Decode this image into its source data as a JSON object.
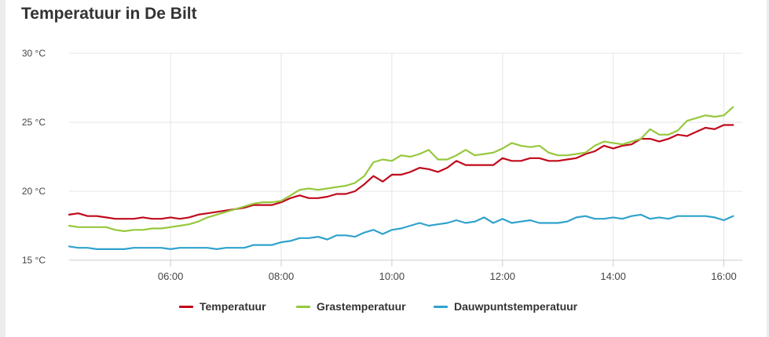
{
  "title": "Temperatuur in De Bilt",
  "chart_data": {
    "type": "line",
    "ylim": [
      15,
      30
    ],
    "y_ticks": [
      {
        "value": 15,
        "label": "15 °C"
      },
      {
        "value": 20,
        "label": "20 °C"
      },
      {
        "value": 25,
        "label": "25 °C"
      },
      {
        "value": 30,
        "label": "30 °C"
      }
    ],
    "x_range": [
      "04:10",
      "16:20"
    ],
    "x_ticks": [
      "06:00",
      "08:00",
      "10:00",
      "12:00",
      "14:00",
      "16:00"
    ],
    "grid": true,
    "legend": "bottom",
    "x": [
      "04:10",
      "04:20",
      "04:30",
      "04:40",
      "04:50",
      "05:00",
      "05:10",
      "05:20",
      "05:30",
      "05:40",
      "05:50",
      "06:00",
      "06:10",
      "06:20",
      "06:30",
      "06:40",
      "06:50",
      "07:00",
      "07:10",
      "07:20",
      "07:30",
      "07:40",
      "07:50",
      "08:00",
      "08:10",
      "08:20",
      "08:30",
      "08:40",
      "08:50",
      "09:00",
      "09:10",
      "09:20",
      "09:30",
      "09:40",
      "09:50",
      "10:00",
      "10:10",
      "10:20",
      "10:30",
      "10:40",
      "10:50",
      "11:00",
      "11:10",
      "11:20",
      "11:30",
      "11:40",
      "11:50",
      "12:00",
      "12:10",
      "12:20",
      "12:30",
      "12:40",
      "12:50",
      "13:00",
      "13:10",
      "13:20",
      "13:30",
      "13:40",
      "13:50",
      "14:00",
      "14:10",
      "14:20",
      "14:30",
      "14:40",
      "14:50",
      "15:00",
      "15:10",
      "15:20",
      "15:30",
      "15:40",
      "15:50",
      "16:00",
      "16:10"
    ],
    "series": [
      {
        "name": "Temperatuur",
        "color": "#c0091b",
        "values": [
          18.3,
          18.4,
          18.2,
          18.2,
          18.1,
          18.0,
          18.0,
          18.0,
          18.1,
          18.0,
          18.0,
          18.1,
          18.0,
          18.1,
          18.3,
          18.4,
          18.5,
          18.6,
          18.7,
          18.8,
          19.0,
          19.0,
          19.0,
          19.2,
          19.5,
          19.7,
          19.5,
          19.5,
          19.6,
          19.8,
          19.8,
          20.0,
          20.5,
          21.1,
          20.7,
          21.2,
          21.2,
          21.4,
          21.7,
          21.6,
          21.4,
          21.7,
          22.2,
          21.9,
          21.9,
          21.9,
          21.9,
          22.4,
          22.2,
          22.2,
          22.4,
          22.4,
          22.2,
          22.2,
          22.3,
          22.4,
          22.7,
          22.9,
          23.3,
          23.1,
          23.3,
          23.4,
          23.8,
          23.8,
          23.6,
          23.8,
          24.1,
          24.0,
          24.3,
          24.6,
          24.5,
          24.8,
          24.8
        ]
      },
      {
        "name": "Grastemperatuur",
        "color": "#96c83c",
        "values": [
          17.5,
          17.4,
          17.4,
          17.4,
          17.4,
          17.2,
          17.1,
          17.2,
          17.2,
          17.3,
          17.3,
          17.4,
          17.5,
          17.6,
          17.8,
          18.1,
          18.3,
          18.5,
          18.7,
          18.9,
          19.1,
          19.2,
          19.2,
          19.3,
          19.7,
          20.1,
          20.2,
          20.1,
          20.2,
          20.3,
          20.4,
          20.6,
          21.1,
          22.1,
          22.3,
          22.2,
          22.6,
          22.5,
          22.7,
          23.0,
          22.3,
          22.3,
          22.6,
          23.0,
          22.6,
          22.7,
          22.8,
          23.1,
          23.5,
          23.3,
          23.2,
          23.3,
          22.8,
          22.6,
          22.6,
          22.7,
          22.8,
          23.3,
          23.6,
          23.5,
          23.4,
          23.6,
          23.8,
          24.5,
          24.1,
          24.1,
          24.4,
          25.1,
          25.3,
          25.5,
          25.4,
          25.5,
          26.1
        ]
      },
      {
        "name": "Dauwpuntstemperatuur",
        "color": "#2fa2cc",
        "values": [
          16.0,
          15.9,
          15.9,
          15.8,
          15.8,
          15.8,
          15.8,
          15.9,
          15.9,
          15.9,
          15.9,
          15.8,
          15.9,
          15.9,
          15.9,
          15.9,
          15.8,
          15.9,
          15.9,
          15.9,
          16.1,
          16.1,
          16.1,
          16.3,
          16.4,
          16.6,
          16.6,
          16.7,
          16.5,
          16.8,
          16.8,
          16.7,
          17.0,
          17.2,
          16.9,
          17.2,
          17.3,
          17.5,
          17.7,
          17.5,
          17.6,
          17.7,
          17.9,
          17.7,
          17.8,
          18.1,
          17.7,
          18.0,
          17.7,
          17.8,
          17.9,
          17.7,
          17.7,
          17.7,
          17.8,
          18.1,
          18.2,
          18.0,
          18.0,
          18.1,
          18.0,
          18.2,
          18.3,
          18.0,
          18.1,
          18.0,
          18.2,
          18.2,
          18.2,
          18.2,
          18.1,
          17.9,
          18.2
        ]
      }
    ]
  }
}
